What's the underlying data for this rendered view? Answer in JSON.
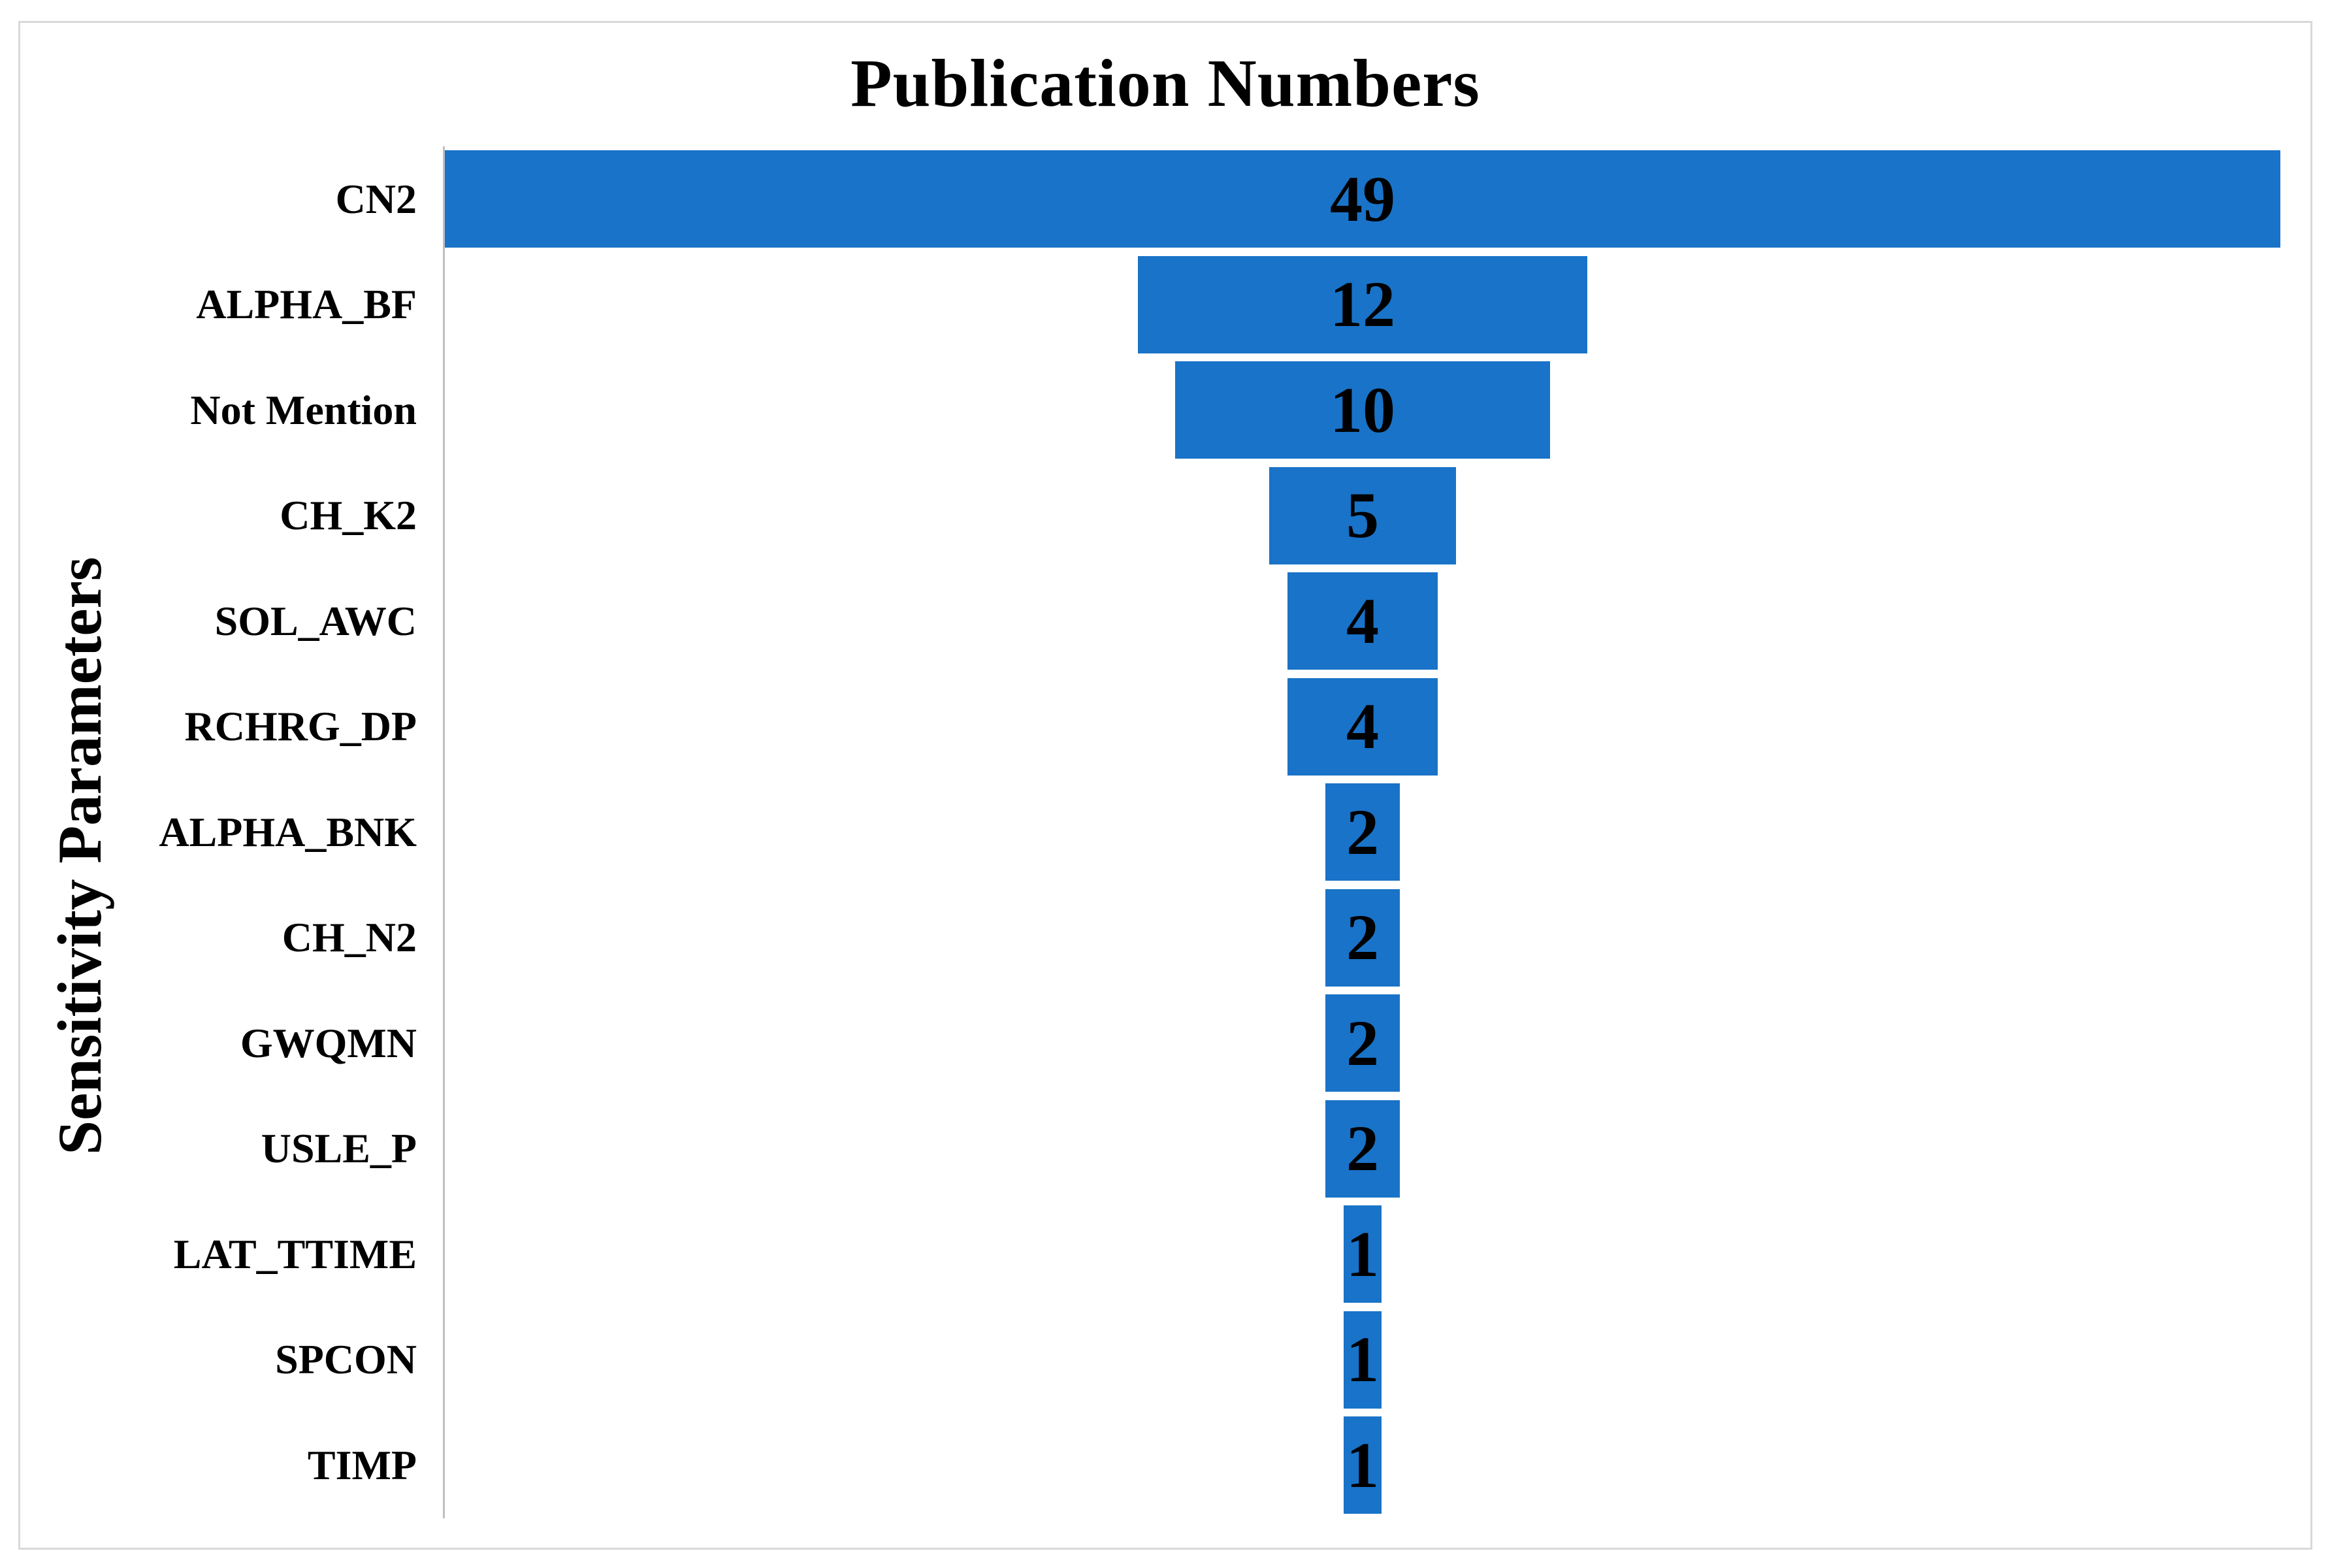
{
  "chart_data": {
    "type": "bar",
    "subtype": "funnel-centered-horizontal",
    "title": "Publication Numbers",
    "ylabel": "Sensitivity Parameters",
    "xlabel": "",
    "categories": [
      "CN2",
      "ALPHA_BF",
      "Not Mention",
      "CH_K2",
      "SOL_AWC",
      "RCHRG_DP",
      "ALPHA_BNK",
      "CH_N2",
      "GWQMN",
      "USLE_P",
      "LAT_TTIME",
      "SPCON",
      "TIMP"
    ],
    "values": [
      49,
      12,
      10,
      5,
      4,
      4,
      2,
      2,
      2,
      2,
      1,
      1,
      1
    ],
    "value_labels": [
      "49",
      "12",
      "10",
      "5",
      "4",
      "4",
      "2",
      "2",
      "2",
      "2",
      "1",
      "1",
      "1"
    ],
    "xlim": [
      0,
      49
    ],
    "grid": false,
    "legend": "none",
    "bars_centered": true,
    "data_labels_position": "center-inside"
  },
  "colors": {
    "bar_fill": "#1973c8",
    "text": "#000000",
    "axis_line": "#bfbfbf",
    "frame_border": "#d9d9d9",
    "background": "#ffffff"
  }
}
